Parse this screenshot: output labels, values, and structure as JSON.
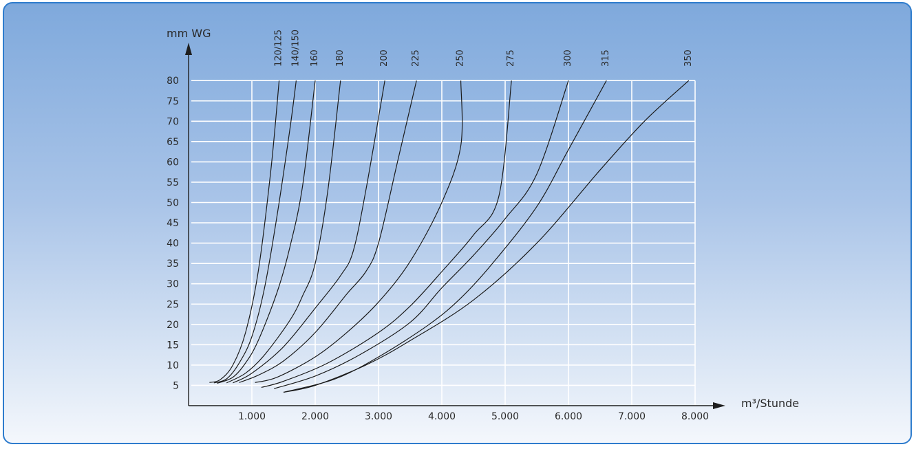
{
  "chart_data": {
    "type": "line",
    "ylabel": "mm WG",
    "xlabel": "m³/Stunde",
    "xlim": [
      0,
      8000
    ],
    "ylim": [
      0,
      80
    ],
    "grid": true,
    "x_ticks": [
      {
        "value": 1000,
        "label": "1.000"
      },
      {
        "value": 2000,
        "label": "2.000"
      },
      {
        "value": 3000,
        "label": "3.000"
      },
      {
        "value": 4000,
        "label": "4.000"
      },
      {
        "value": 5000,
        "label": "5.000"
      },
      {
        "value": 6000,
        "label": "6.000"
      },
      {
        "value": 7000,
        "label": "7.000"
      },
      {
        "value": 8000,
        "label": "8.000"
      }
    ],
    "y_ticks": [
      {
        "value": 5,
        "label": "5"
      },
      {
        "value": 10,
        "label": "10"
      },
      {
        "value": 15,
        "label": "15"
      },
      {
        "value": 20,
        "label": "20"
      },
      {
        "value": 25,
        "label": "25"
      },
      {
        "value": 30,
        "label": "30"
      },
      {
        "value": 35,
        "label": "35"
      },
      {
        "value": 40,
        "label": "40"
      },
      {
        "value": 45,
        "label": "45"
      },
      {
        "value": 50,
        "label": "50"
      },
      {
        "value": 55,
        "label": "55"
      },
      {
        "value": 60,
        "label": "60"
      },
      {
        "value": 65,
        "label": "65"
      },
      {
        "value": 70,
        "label": "70"
      },
      {
        "value": 75,
        "label": "75"
      },
      {
        "value": 80,
        "label": "80"
      }
    ],
    "series": [
      {
        "name": "120/125",
        "points": [
          [
            330,
            5.7
          ],
          [
            500,
            6.4
          ],
          [
            700,
            10
          ],
          [
            900,
            18
          ],
          [
            1100,
            33
          ],
          [
            1300,
            58
          ],
          [
            1430,
            80
          ]
        ]
      },
      {
        "name": "140/150",
        "points": [
          [
            400,
            5.6
          ],
          [
            600,
            6.6
          ],
          [
            800,
            10.5
          ],
          [
            1000,
            17
          ],
          [
            1200,
            29
          ],
          [
            1400,
            47
          ],
          [
            1600,
            68
          ],
          [
            1700,
            80
          ]
        ]
      },
      {
        "name": "160",
        "points": [
          [
            450,
            5.5
          ],
          [
            700,
            7
          ],
          [
            900,
            10.5
          ],
          [
            1100,
            16
          ],
          [
            1400,
            28
          ],
          [
            1600,
            39
          ],
          [
            1800,
            54
          ],
          [
            2000,
            80
          ]
        ]
      },
      {
        "name": "180",
        "points": [
          [
            600,
            5.6
          ],
          [
            900,
            8
          ],
          [
            1200,
            12.5
          ],
          [
            1600,
            21
          ],
          [
            1800,
            27
          ],
          [
            2000,
            35
          ],
          [
            2200,
            53
          ],
          [
            2400,
            80
          ]
        ]
      },
      {
        "name": "200",
        "points": [
          [
            700,
            5.6
          ],
          [
            1000,
            8
          ],
          [
            1500,
            14.5
          ],
          [
            2000,
            24
          ],
          [
            2400,
            32
          ],
          [
            2600,
            38
          ],
          [
            2800,
            53
          ],
          [
            3100,
            80
          ]
        ]
      },
      {
        "name": "225",
        "points": [
          [
            800,
            5.7
          ],
          [
            1100,
            7.5
          ],
          [
            1500,
            11
          ],
          [
            2000,
            18
          ],
          [
            2500,
            27.5
          ],
          [
            2800,
            33
          ],
          [
            3000,
            40
          ],
          [
            3300,
            60
          ],
          [
            3600,
            80
          ]
        ]
      },
      {
        "name": "250",
        "points": [
          [
            1050,
            5.7
          ],
          [
            1400,
            7
          ],
          [
            2000,
            12
          ],
          [
            2500,
            18
          ],
          [
            3000,
            25.5
          ],
          [
            3500,
            35.5
          ],
          [
            4000,
            50
          ],
          [
            4300,
            64
          ],
          [
            4300,
            80
          ]
        ]
      },
      {
        "name": "275",
        "points": [
          [
            1150,
            4.5
          ],
          [
            1500,
            6
          ],
          [
            2200,
            10.5
          ],
          [
            3000,
            18
          ],
          [
            3500,
            24.5
          ],
          [
            4000,
            33
          ],
          [
            4500,
            42
          ],
          [
            4900,
            51.5
          ],
          [
            5100,
            80
          ]
        ]
      },
      {
        "name": "300",
        "points": [
          [
            1350,
            4.2
          ],
          [
            2000,
            7.3
          ],
          [
            2700,
            12.5
          ],
          [
            3500,
            20.5
          ],
          [
            4000,
            29
          ],
          [
            4500,
            37
          ],
          [
            5000,
            46
          ],
          [
            5500,
            57
          ],
          [
            6000,
            80
          ]
        ]
      },
      {
        "name": "315",
        "points": [
          [
            1500,
            3.3
          ],
          [
            2300,
            6.5
          ],
          [
            3000,
            12
          ],
          [
            3800,
            20
          ],
          [
            4300,
            26.5
          ],
          [
            4800,
            35
          ],
          [
            5500,
            49
          ],
          [
            6000,
            63
          ],
          [
            6600,
            80
          ]
        ]
      },
      {
        "name": "350",
        "points": [
          [
            1500,
            3.3
          ],
          [
            2000,
            5
          ],
          [
            2800,
            10
          ],
          [
            3500,
            16
          ],
          [
            4500,
            26
          ],
          [
            5500,
            40
          ],
          [
            6500,
            58
          ],
          [
            7200,
            70
          ],
          [
            7900,
            80
          ]
        ]
      }
    ]
  }
}
